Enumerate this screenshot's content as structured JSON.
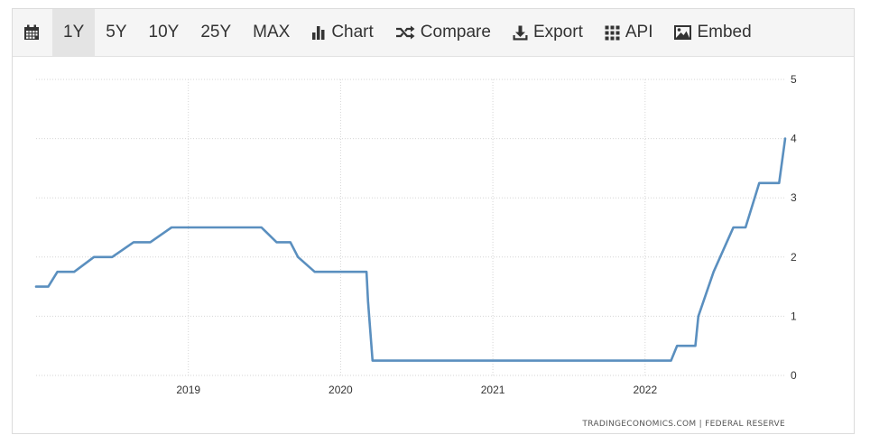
{
  "toolbar": {
    "calendar_icon": "calendar-icon",
    "ranges": [
      "1Y",
      "5Y",
      "10Y",
      "25Y",
      "MAX"
    ],
    "active_range": "1Y",
    "actions": [
      {
        "label": "Chart",
        "icon": "bar-chart-icon"
      },
      {
        "label": "Compare",
        "icon": "shuffle-icon"
      },
      {
        "label": "Export",
        "icon": "download-icon"
      },
      {
        "label": "API",
        "icon": "grid-icon"
      },
      {
        "label": "Embed",
        "icon": "image-icon"
      }
    ]
  },
  "chart_data": {
    "type": "line",
    "title": "",
    "xlabel": "",
    "ylabel": "",
    "x_ticks": [
      "2019",
      "2020",
      "2021",
      "2022"
    ],
    "y_ticks": [
      0,
      1,
      2,
      3,
      4,
      5
    ],
    "ylim": [
      0,
      5
    ],
    "xlim": [
      2018.0,
      2022.92
    ],
    "grid": true,
    "y_axis_side": "right",
    "line_color": "#5a8fbf",
    "series": [
      {
        "x": [
          2018.0,
          2018.08,
          2018.14,
          2018.25,
          2018.38,
          2018.5,
          2018.64,
          2018.75,
          2018.89,
          2019.0,
          2019.13,
          2019.25,
          2019.48,
          2019.58,
          2019.67,
          2019.72,
          2019.83,
          2019.95,
          2020.17,
          2020.18,
          2020.21,
          2020.5,
          2021.0,
          2021.5,
          2022.0,
          2022.17,
          2022.21,
          2022.33,
          2022.35,
          2022.45,
          2022.58,
          2022.66,
          2022.75,
          2022.83,
          2022.88,
          2022.92
        ],
        "y": [
          1.5,
          1.5,
          1.75,
          1.75,
          2.0,
          2.0,
          2.25,
          2.25,
          2.5,
          2.5,
          2.5,
          2.5,
          2.5,
          2.25,
          2.25,
          2.0,
          1.75,
          1.75,
          1.75,
          1.25,
          0.25,
          0.25,
          0.25,
          0.25,
          0.25,
          0.25,
          0.5,
          0.5,
          1.0,
          1.75,
          2.5,
          2.5,
          3.25,
          3.25,
          3.25,
          4.0
        ]
      }
    ],
    "source": "TRADINGECONOMICS.COM | FEDERAL RESERVE"
  }
}
